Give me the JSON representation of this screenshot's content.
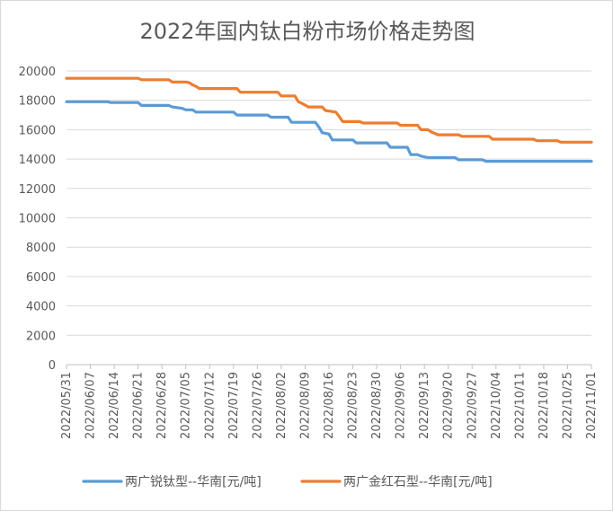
{
  "chart_data": {
    "type": "line",
    "title": "2022年国内钛白粉市场价格走势图",
    "xlabel": "",
    "ylabel": "",
    "ylim": [
      0,
      20000
    ],
    "yticks": [
      0,
      2000,
      4000,
      6000,
      8000,
      10000,
      12000,
      14000,
      16000,
      18000,
      20000
    ],
    "x_start": "2022-05-31",
    "x_end": "2022-11-01",
    "xticks": [
      "2022/05/31",
      "2022/06/07",
      "2022/06/14",
      "2022/06/21",
      "2022/06/28",
      "2022/07/05",
      "2022/07/12",
      "2022/07/19",
      "2022/07/26",
      "2022/08/02",
      "2022/08/09",
      "2022/08/16",
      "2022/08/23",
      "2022/08/30",
      "2022/09/06",
      "2022/09/13",
      "2022/09/20",
      "2022/09/27",
      "2022/10/04",
      "2022/10/11",
      "2022/10/18",
      "2022/10/25",
      "2022/11/01"
    ],
    "grid": "horizontal",
    "legend_position": "bottom",
    "series": [
      {
        "name": "两广锐钛型--华南[元/吨]",
        "color": "#5b9bd5",
        "points": [
          [
            "2022-05-31",
            17900
          ],
          [
            "2022-06-12",
            17900
          ],
          [
            "2022-06-13",
            17850
          ],
          [
            "2022-06-21",
            17850
          ],
          [
            "2022-06-22",
            17650
          ],
          [
            "2022-06-30",
            17650
          ],
          [
            "2022-07-01",
            17550
          ],
          [
            "2022-07-04",
            17450
          ],
          [
            "2022-07-05",
            17350
          ],
          [
            "2022-07-07",
            17350
          ],
          [
            "2022-07-08",
            17200
          ],
          [
            "2022-07-19",
            17200
          ],
          [
            "2022-07-20",
            17000
          ],
          [
            "2022-07-29",
            17000
          ],
          [
            "2022-07-30",
            16850
          ],
          [
            "2022-08-04",
            16850
          ],
          [
            "2022-08-05",
            16500
          ],
          [
            "2022-08-12",
            16500
          ],
          [
            "2022-08-13",
            16200
          ],
          [
            "2022-08-14",
            15800
          ],
          [
            "2022-08-16",
            15700
          ],
          [
            "2022-08-17",
            15300
          ],
          [
            "2022-08-23",
            15300
          ],
          [
            "2022-08-24",
            15100
          ],
          [
            "2022-09-02",
            15100
          ],
          [
            "2022-09-03",
            14800
          ],
          [
            "2022-09-08",
            14800
          ],
          [
            "2022-09-09",
            14300
          ],
          [
            "2022-09-11",
            14300
          ],
          [
            "2022-09-12",
            14200
          ],
          [
            "2022-09-14",
            14100
          ],
          [
            "2022-09-22",
            14100
          ],
          [
            "2022-09-23",
            13950
          ],
          [
            "2022-09-30",
            13950
          ],
          [
            "2022-10-01",
            13850
          ],
          [
            "2022-11-01",
            13850
          ]
        ]
      },
      {
        "name": "两广金红石型--华南[元/吨]",
        "color": "#ed7d31",
        "points": [
          [
            "2022-05-31",
            19500
          ],
          [
            "2022-06-21",
            19500
          ],
          [
            "2022-06-22",
            19400
          ],
          [
            "2022-06-30",
            19400
          ],
          [
            "2022-07-01",
            19250
          ],
          [
            "2022-07-05",
            19250
          ],
          [
            "2022-07-06",
            19200
          ],
          [
            "2022-07-07",
            19050
          ],
          [
            "2022-07-08",
            18950
          ],
          [
            "2022-07-09",
            18800
          ],
          [
            "2022-07-20",
            18800
          ],
          [
            "2022-07-21",
            18550
          ],
          [
            "2022-08-01",
            18550
          ],
          [
            "2022-08-02",
            18300
          ],
          [
            "2022-08-06",
            18300
          ],
          [
            "2022-08-07",
            17900
          ],
          [
            "2022-08-08",
            17800
          ],
          [
            "2022-08-10",
            17550
          ],
          [
            "2022-08-14",
            17550
          ],
          [
            "2022-08-15",
            17300
          ],
          [
            "2022-08-18",
            17200
          ],
          [
            "2022-08-19",
            16900
          ],
          [
            "2022-08-20",
            16550
          ],
          [
            "2022-08-25",
            16550
          ],
          [
            "2022-08-26",
            16450
          ],
          [
            "2022-09-05",
            16450
          ],
          [
            "2022-09-06",
            16300
          ],
          [
            "2022-09-11",
            16300
          ],
          [
            "2022-09-12",
            16000
          ],
          [
            "2022-09-14",
            16000
          ],
          [
            "2022-09-15",
            15850
          ],
          [
            "2022-09-17",
            15650
          ],
          [
            "2022-09-23",
            15650
          ],
          [
            "2022-09-24",
            15550
          ],
          [
            "2022-10-02",
            15550
          ],
          [
            "2022-10-03",
            15350
          ],
          [
            "2022-10-15",
            15350
          ],
          [
            "2022-10-16",
            15250
          ],
          [
            "2022-10-22",
            15250
          ],
          [
            "2022-10-23",
            15150
          ],
          [
            "2022-11-01",
            15150
          ]
        ]
      }
    ]
  }
}
